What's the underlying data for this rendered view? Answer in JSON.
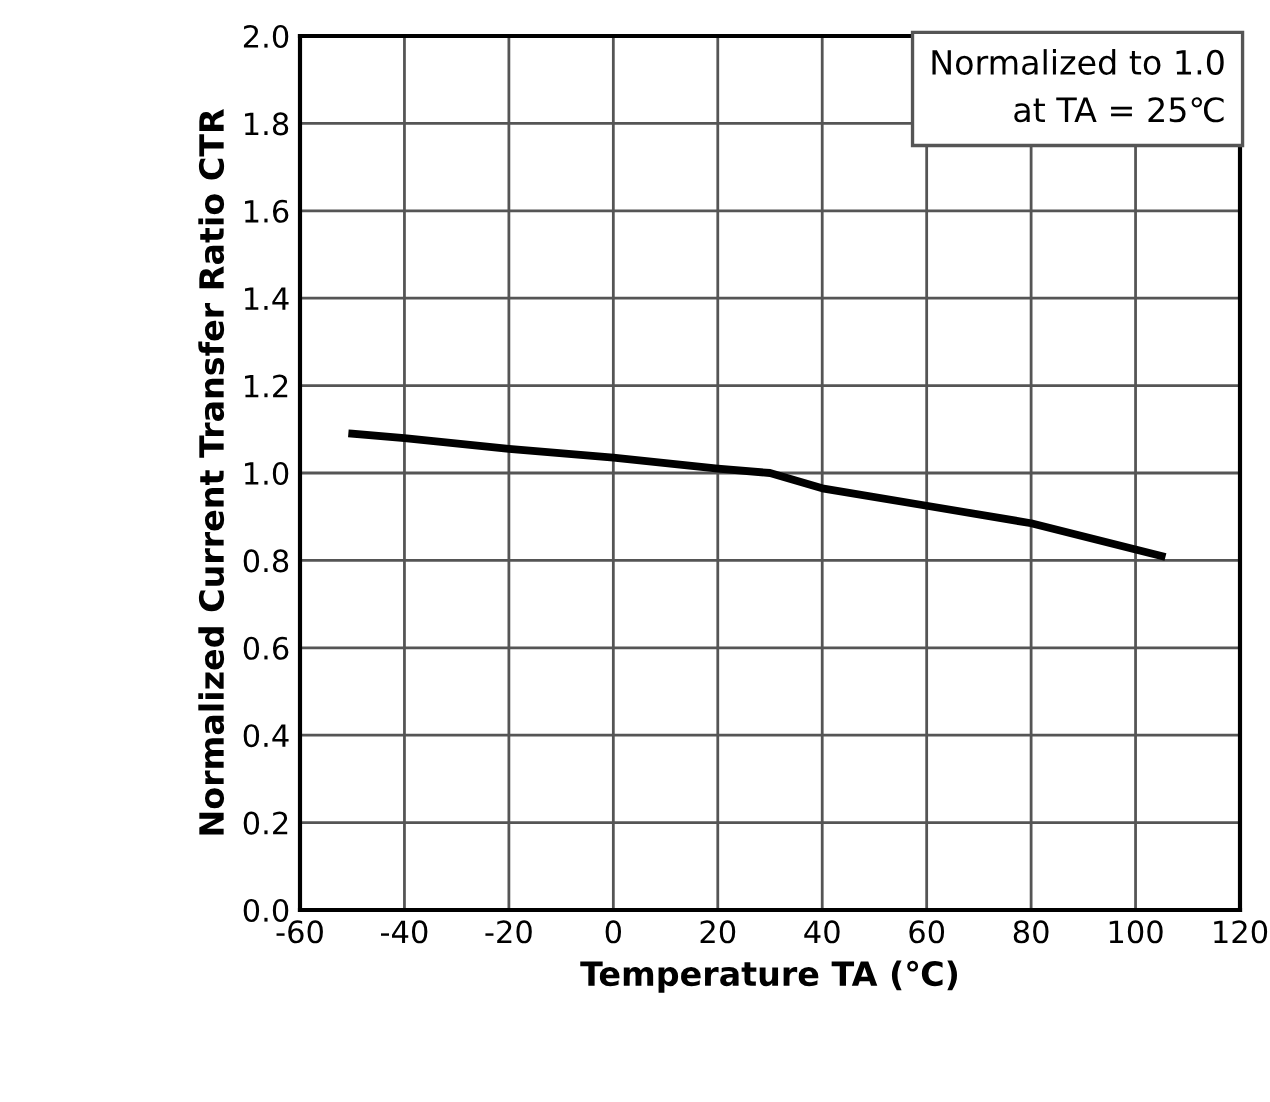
{
  "chart_data": {
    "type": "line",
    "xlabel": "Temperature TA (℃)",
    "ylabel": "Normalized Current Transfer Ratio CTR",
    "annotations": [
      "Normalized to 1.0\nat TA = 25℃"
    ],
    "x": [
      -50,
      -40,
      -20,
      0,
      20,
      30,
      40,
      60,
      80,
      105
    ],
    "series": [
      {
        "color": "#000000",
        "values": [
          1.09,
          1.08,
          1.055,
          1.035,
          1.01,
          1.0,
          0.965,
          0.925,
          0.885,
          0.81
        ]
      }
    ],
    "xlim": [
      -60,
      120
    ],
    "xticks": [
      -60,
      -40,
      -20,
      0,
      20,
      40,
      60,
      80,
      100,
      120
    ],
    "ylim": [
      0,
      2.0
    ],
    "yticks": [
      {
        "value": 0,
        "label": "0.0"
      },
      {
        "value": 0.2,
        "label": "0.2"
      },
      {
        "value": 0.4,
        "label": "0.4"
      },
      {
        "value": 0.6,
        "label": "0.6"
      },
      {
        "value": 0.8,
        "label": "0.8"
      },
      {
        "value": 1.0,
        "label": "1.0"
      },
      {
        "value": 1.2,
        "label": "1.2"
      },
      {
        "value": 1.4,
        "label": "1.4"
      },
      {
        "value": 1.6,
        "label": "1.6"
      },
      {
        "value": 1.8,
        "label": "1.8"
      },
      {
        "value": 2.0,
        "label": "2.0"
      }
    ],
    "grid": true,
    "marker": "none",
    "line_style": "solid",
    "legend": false
  }
}
